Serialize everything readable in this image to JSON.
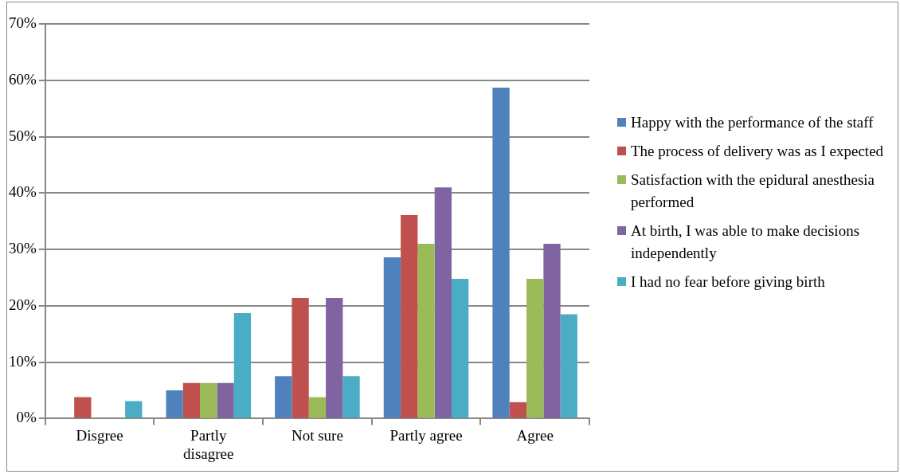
{
  "chart_data": {
    "type": "bar",
    "categories": [
      "Disgree",
      "Partly disagree",
      "Not sure",
      "Partly agree",
      "Agree"
    ],
    "series": [
      {
        "name": "Happy with the performance of the staff",
        "color": "#4f81bd",
        "values": [
          0,
          5.0,
          7.5,
          28.6,
          58.7
        ]
      },
      {
        "name": "The process of delivery was as I expected",
        "color": "#c0504d",
        "values": [
          3.8,
          6.3,
          21.4,
          36.1,
          2.9
        ]
      },
      {
        "name": "Satisfaction with the epidural anesthesia performed",
        "color": "#9bbb59",
        "values": [
          0,
          6.3,
          3.8,
          31.0,
          24.8
        ]
      },
      {
        "name": "At birth, I was able to make decisions independently",
        "color": "#8064a2",
        "values": [
          0,
          6.3,
          21.4,
          41.0,
          31.0
        ]
      },
      {
        "name": "I had no fear before giving birth",
        "color": "#4bacc6",
        "values": [
          3.1,
          18.7,
          7.5,
          24.8,
          18.5
        ]
      }
    ],
    "ylim": [
      0,
      70
    ],
    "yticks": [
      {
        "value": 0,
        "label": "0%"
      },
      {
        "value": 10,
        "label": "10%"
      },
      {
        "value": 20,
        "label": "20%"
      },
      {
        "value": 30,
        "label": "30%"
      },
      {
        "value": 40,
        "label": "40%"
      },
      {
        "value": 50,
        "label": "50%"
      },
      {
        "value": 60,
        "label": "60%"
      },
      {
        "value": 70,
        "label": "70%"
      }
    ],
    "grid": "y",
    "legend": "right"
  }
}
